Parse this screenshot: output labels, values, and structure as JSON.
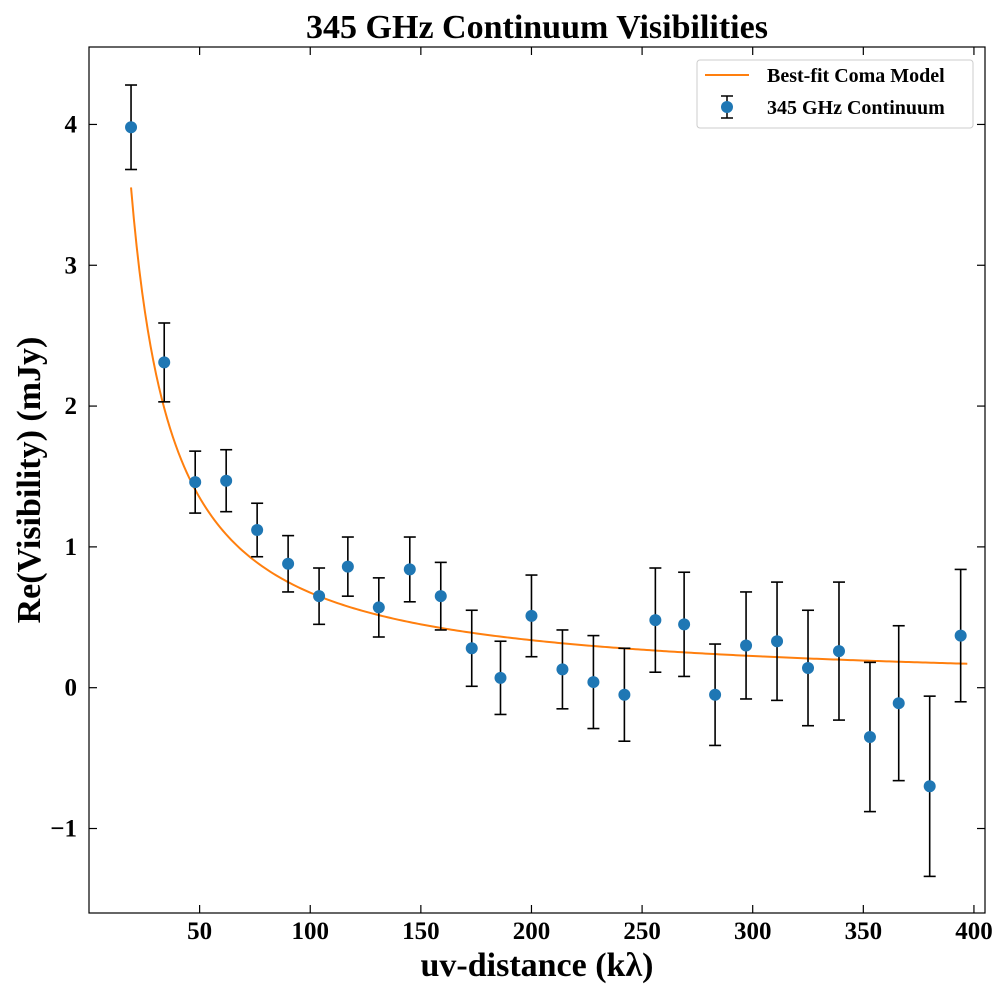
{
  "chart_data": {
    "type": "scatter",
    "title": "345 GHz Continuum Visibilities",
    "xlabel": "uv-distance (kλ)",
    "ylabel": "Re(Visibility) (mJy)",
    "xlim": [
      0,
      405
    ],
    "ylim": [
      -1.6,
      4.55
    ],
    "xticks": [
      50,
      100,
      150,
      200,
      250,
      300,
      350,
      400
    ],
    "xtick_labels": [
      "50",
      "100",
      "150",
      "200",
      "250",
      "300",
      "350",
      "400"
    ],
    "yticks": [
      -1,
      0,
      1,
      2,
      3,
      4
    ],
    "ytick_labels": [
      "−1",
      "0",
      "1",
      "2",
      "3",
      "4"
    ],
    "grid": false,
    "legend_position": "top-right",
    "series": [
      {
        "name": "345 GHz Continuum",
        "kind": "errorbar",
        "color": "#1f77b4",
        "errorbar_color": "#000000",
        "x": [
          19,
          34,
          48,
          62,
          76,
          90,
          104,
          117,
          131,
          145,
          159,
          173,
          186,
          200,
          214,
          228,
          242,
          256,
          269,
          283,
          297,
          311,
          325,
          339,
          353,
          366,
          380,
          394
        ],
        "y": [
          3.98,
          2.31,
          1.46,
          1.47,
          1.12,
          0.88,
          0.65,
          0.86,
          0.57,
          0.84,
          0.65,
          0.28,
          0.07,
          0.51,
          0.13,
          0.04,
          -0.05,
          0.48,
          0.45,
          -0.05,
          0.3,
          0.33,
          0.14,
          0.26,
          -0.35,
          -0.11,
          -0.7,
          0.37
        ],
        "yerr": [
          0.3,
          0.28,
          0.22,
          0.22,
          0.19,
          0.2,
          0.2,
          0.21,
          0.21,
          0.23,
          0.24,
          0.27,
          0.26,
          0.29,
          0.28,
          0.33,
          0.33,
          0.37,
          0.37,
          0.36,
          0.38,
          0.42,
          0.41,
          0.49,
          0.53,
          0.55,
          0.64,
          0.47
        ]
      },
      {
        "name": "Best-fit Coma Model",
        "kind": "line",
        "color": "#ff7f0e",
        "model": "A / x",
        "A": 67.5,
        "x_range": [
          19,
          397
        ]
      }
    ]
  }
}
